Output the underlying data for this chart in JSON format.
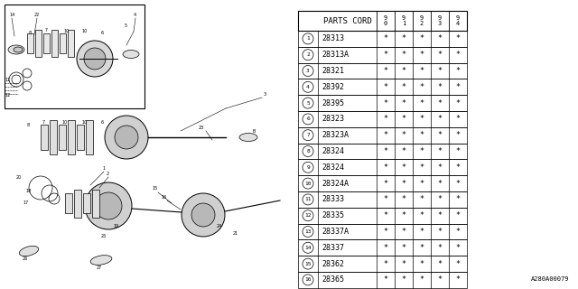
{
  "footer_code": "A280A00079",
  "parts": [
    [
      "1",
      "28313"
    ],
    [
      "2",
      "28313A"
    ],
    [
      "3",
      "28321"
    ],
    [
      "4",
      "28392"
    ],
    [
      "5",
      "28395"
    ],
    [
      "6",
      "28323"
    ],
    [
      "7",
      "28323A"
    ],
    [
      "8",
      "28324"
    ],
    [
      "9",
      "28324"
    ],
    [
      "10",
      "28324A"
    ],
    [
      "11",
      "28333"
    ],
    [
      "12",
      "28335"
    ],
    [
      "13",
      "28337A"
    ],
    [
      "14",
      "28337"
    ],
    [
      "15",
      "28362"
    ],
    [
      "16",
      "28365"
    ]
  ],
  "star": "*",
  "bg_color": "#ffffff",
  "line_color": "#000000"
}
